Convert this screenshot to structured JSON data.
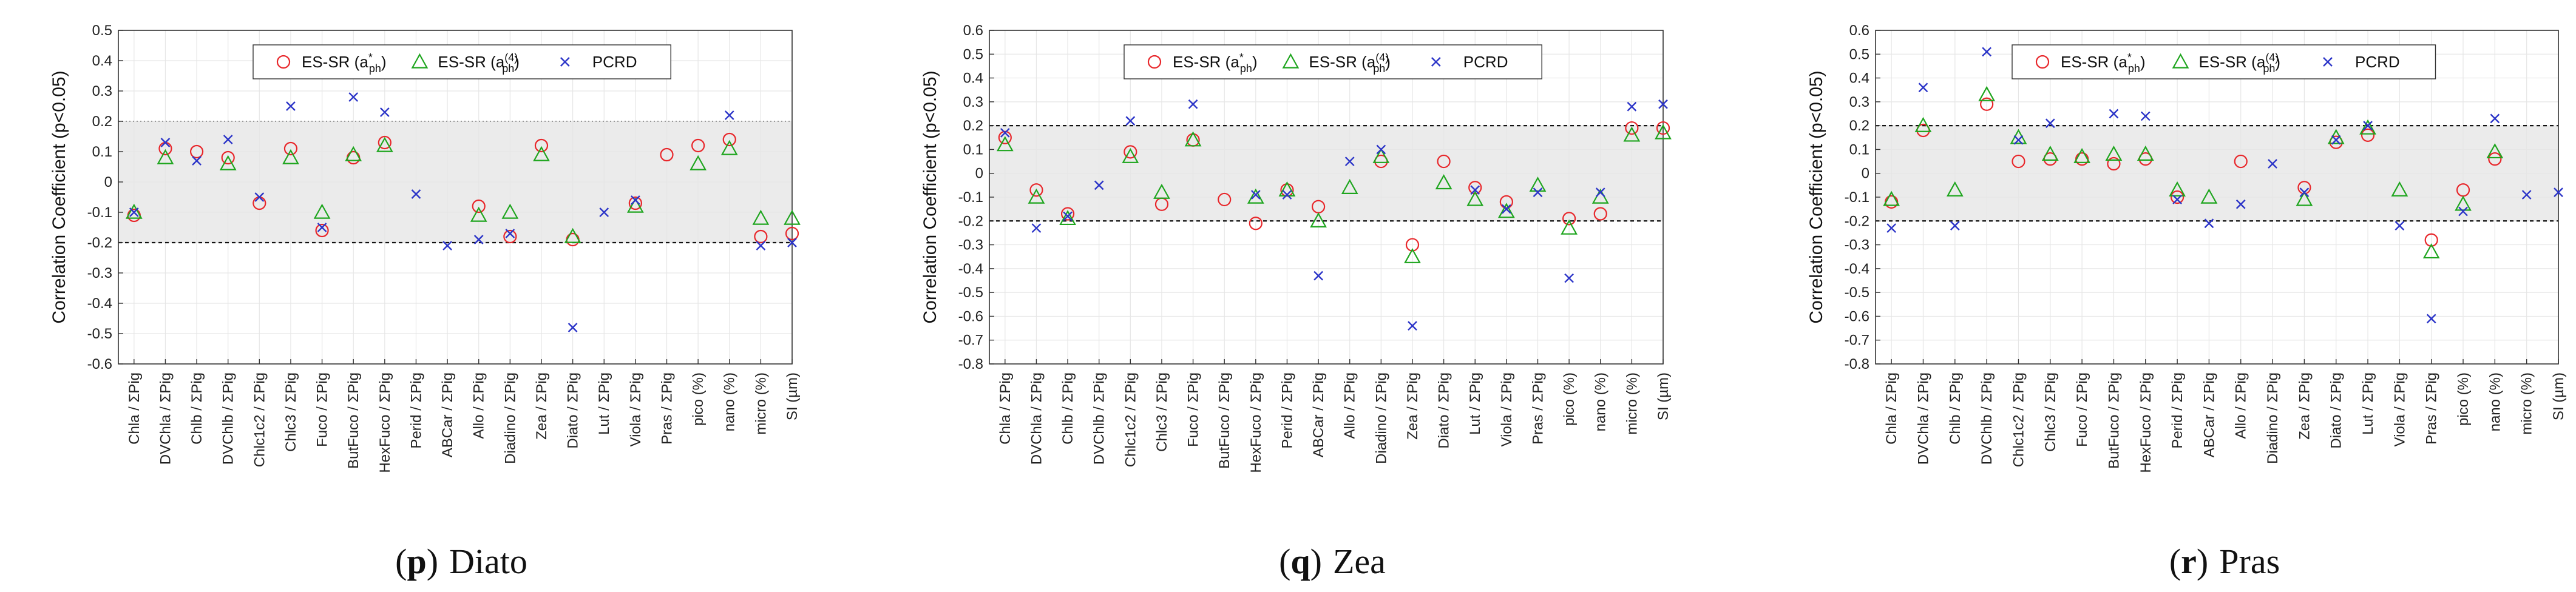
{
  "legend": {
    "es_a": "ES-SR (a",
    "es_a_sup": "*",
    "es_a_sub": "ph",
    "es_b": "ES-SR (a",
    "es_b_sup": "(4)",
    "es_b_sub": "ph",
    "close": ")",
    "pcrd": "PCRD"
  },
  "colors": {
    "es_a": "#e8262a",
    "es_b": "#1ea51e",
    "pcrd": "#2b34c8",
    "band": "#ebebeb"
  },
  "chart_data": [
    {
      "type": "scatter",
      "caption_letter": "p",
      "caption_name": "Diato",
      "caption_paren_open": "(",
      "caption_paren_close": ")",
      "ylabel": "Correlation Coefficient (p<0.05)",
      "ylim": [
        -0.6,
        0.5
      ],
      "yticks": [
        -0.6,
        -0.5,
        -0.4,
        -0.3,
        -0.2,
        -0.1,
        0,
        0.1,
        0.2,
        0.3,
        0.4,
        0.5
      ],
      "ytick_labels": [
        "-0.6",
        "-0.5",
        "-0.4",
        "-0.3",
        "-0.2",
        "-0.1",
        "0",
        "0.1",
        "0.2",
        "0.3",
        "0.4",
        "0.5"
      ],
      "band": [
        -0.2,
        0.2
      ],
      "band_dashed": [
        -0.2
      ],
      "band_dotted": [
        0.2
      ],
      "categories": [
        "Chla / ΣPig",
        "DVChla / ΣPig",
        "Chlb / ΣPig",
        "DVChlb / ΣPig",
        "Chlc1c2 / ΣPig",
        "Chlc3 / ΣPig",
        "Fuco / ΣPig",
        "ButFuco / ΣPig",
        "HexFuco / ΣPig",
        "Perid / ΣPig",
        "ABCar / ΣPig",
        "Allo / ΣPig",
        "Diadino / ΣPig",
        "Zea / ΣPig",
        "Diato / ΣPig",
        "Lut / ΣPig",
        "Viola / ΣPig",
        "Pras / ΣPig",
        "pico (%)",
        "nano (%)",
        "micro (%)",
        "SI (µm)"
      ],
      "series": [
        {
          "name": "ES-SR (a*ph)",
          "marker": "circle",
          "values": [
            -0.11,
            0.11,
            0.1,
            0.08,
            -0.07,
            0.11,
            -0.16,
            0.08,
            0.13,
            null,
            null,
            -0.08,
            -0.18,
            0.12,
            -0.19,
            null,
            -0.07,
            0.09,
            0.12,
            0.14,
            -0.18,
            -0.17
          ]
        },
        {
          "name": "ES-SR (a(4)ph)",
          "marker": "triangle",
          "values": [
            -0.1,
            0.08,
            null,
            0.06,
            null,
            0.08,
            -0.1,
            0.09,
            0.12,
            null,
            null,
            -0.11,
            -0.1,
            0.09,
            -0.18,
            null,
            -0.08,
            null,
            0.06,
            0.11,
            -0.12,
            -0.12
          ]
        },
        {
          "name": "PCRD",
          "marker": "x",
          "values": [
            -0.1,
            0.13,
            0.07,
            0.14,
            -0.05,
            0.25,
            -0.15,
            0.28,
            0.23,
            -0.04,
            -0.21,
            -0.19,
            -0.17,
            null,
            -0.48,
            -0.1,
            -0.06,
            null,
            null,
            0.22,
            -0.21,
            -0.2
          ]
        }
      ]
    },
    {
      "type": "scatter",
      "caption_letter": "q",
      "caption_name": "Zea",
      "caption_paren_open": "(",
      "caption_paren_close": ")",
      "ylabel": "Correlation Coefficient (p<0.05)",
      "ylim": [
        -0.8,
        0.6
      ],
      "yticks": [
        -0.8,
        -0.7,
        -0.6,
        -0.5,
        -0.4,
        -0.3,
        -0.2,
        -0.1,
        0,
        0.1,
        0.2,
        0.3,
        0.4,
        0.5,
        0.6
      ],
      "ytick_labels": [
        "-0.8",
        "-0.7",
        "-0.6",
        "-0.5",
        "-0.4",
        "-0.3",
        "-0.2",
        "-0.1",
        "0",
        "0.1",
        "0.2",
        "0.3",
        "0.4",
        "0.5",
        "0.6"
      ],
      "band": [
        -0.2,
        0.2
      ],
      "band_dashed": [
        -0.2,
        0.2
      ],
      "band_dotted": [],
      "categories": [
        "Chla / ΣPig",
        "DVChla / ΣPig",
        "Chlb / ΣPig",
        "DVChlb / ΣPig",
        "Chlc1c2 / ΣPig",
        "Chlc3 / ΣPig",
        "Fuco / ΣPig",
        "ButFuco / ΣPig",
        "HexFuco / ΣPig",
        "Perid / ΣPig",
        "ABCar / ΣPig",
        "Allo / ΣPig",
        "Diadino / ΣPig",
        "Zea / ΣPig",
        "Diato / ΣPig",
        "Lut / ΣPig",
        "Viola / ΣPig",
        "Pras / ΣPig",
        "pico (%)",
        "nano (%)",
        "micro (%)",
        "SI (µm)"
      ],
      "series": [
        {
          "name": "ES-SR (a*ph)",
          "marker": "circle",
          "values": [
            0.15,
            -0.07,
            -0.17,
            null,
            0.09,
            -0.13,
            0.14,
            -0.11,
            -0.21,
            -0.07,
            -0.14,
            null,
            0.05,
            -0.3,
            0.05,
            -0.06,
            -0.12,
            null,
            -0.19,
            -0.17,
            0.19,
            0.19
          ]
        },
        {
          "name": "ES-SR (a(4)ph)",
          "marker": "triangle",
          "values": [
            0.12,
            -0.1,
            -0.19,
            null,
            0.07,
            -0.08,
            0.14,
            null,
            -0.1,
            -0.07,
            -0.2,
            -0.06,
            0.07,
            -0.35,
            -0.04,
            -0.11,
            -0.16,
            -0.05,
            -0.23,
            -0.1,
            0.16,
            0.17
          ]
        },
        {
          "name": "PCRD",
          "marker": "x",
          "values": [
            0.17,
            -0.23,
            -0.18,
            -0.05,
            0.22,
            null,
            0.29,
            null,
            -0.09,
            -0.09,
            -0.43,
            0.05,
            0.1,
            -0.64,
            null,
            -0.07,
            -0.15,
            -0.08,
            -0.44,
            -0.08,
            0.28,
            0.29
          ]
        }
      ]
    },
    {
      "type": "scatter",
      "caption_letter": "r",
      "caption_name": "Pras",
      "caption_paren_open": "(",
      "caption_paren_close": ")",
      "ylabel": "Correlation Coefficient (p<0.05)",
      "ylim": [
        -0.8,
        0.6
      ],
      "yticks": [
        -0.8,
        -0.7,
        -0.6,
        -0.5,
        -0.4,
        -0.3,
        -0.2,
        -0.1,
        0,
        0.1,
        0.2,
        0.3,
        0.4,
        0.5,
        0.6
      ],
      "ytick_labels": [
        "-0.8",
        "-0.7",
        "-0.6",
        "-0.5",
        "-0.4",
        "-0.3",
        "-0.2",
        "-0.1",
        "0",
        "0.1",
        "0.2",
        "0.3",
        "0.4",
        "0.5",
        "0.6"
      ],
      "band": [
        -0.2,
        0.2
      ],
      "band_dashed": [
        -0.2,
        0.2
      ],
      "band_dotted": [],
      "categories": [
        "Chla / ΣPig",
        "DVChla / ΣPig",
        "Chlb / ΣPig",
        "DVChlb / ΣPig",
        "Chlc1c2 / ΣPig",
        "Chlc3 / ΣPig",
        "Fuco / ΣPig",
        "ButFuco / ΣPig",
        "HexFuco / ΣPig",
        "Perid / ΣPig",
        "ABCar / ΣPig",
        "Allo / ΣPig",
        "Diadino / ΣPig",
        "Zea / ΣPig",
        "Diato / ΣPig",
        "Lut / ΣPig",
        "Viola / ΣPig",
        "Pras / ΣPig",
        "pico (%)",
        "nano (%)",
        "micro (%)",
        "SI (µm)"
      ],
      "series": [
        {
          "name": "ES-SR (a*ph)",
          "marker": "circle",
          "values": [
            -0.12,
            0.18,
            null,
            0.29,
            0.05,
            0.06,
            0.06,
            0.04,
            0.06,
            -0.1,
            null,
            0.05,
            null,
            -0.06,
            0.13,
            0.16,
            null,
            -0.28,
            -0.07,
            0.06,
            null,
            null
          ]
        },
        {
          "name": "ES-SR (a(4)ph)",
          "marker": "triangle",
          "values": [
            -0.11,
            0.2,
            -0.07,
            0.33,
            0.15,
            0.08,
            0.07,
            0.08,
            0.08,
            -0.07,
            -0.1,
            null,
            null,
            -0.11,
            0.15,
            0.19,
            -0.07,
            -0.33,
            -0.13,
            0.09,
            null,
            null
          ]
        },
        {
          "name": "PCRD",
          "marker": "x",
          "values": [
            -0.23,
            0.36,
            -0.22,
            0.51,
            0.14,
            0.21,
            null,
            0.25,
            0.24,
            -0.11,
            -0.21,
            -0.13,
            0.04,
            -0.08,
            0.14,
            0.2,
            -0.22,
            -0.61,
            -0.16,
            0.23,
            -0.09,
            -0.08
          ]
        }
      ]
    }
  ]
}
